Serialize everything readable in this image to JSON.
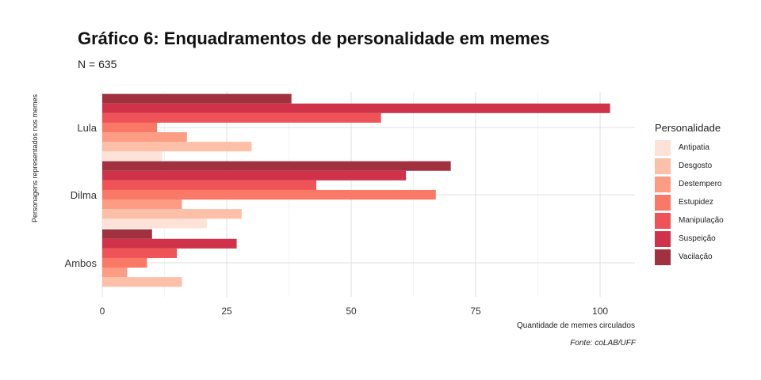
{
  "chart_data": {
    "type": "bar",
    "orientation": "horizontal",
    "title": "Gráfico 6: Enquadramentos de personalidade em memes",
    "subtitle": "N = 635",
    "xlabel": "Quantidade de memes circulados",
    "ylabel": "Personagens representados nos memes",
    "caption": "Fonte: coLAB/UFF",
    "legend_title": "Personalidade",
    "legend_position": "right",
    "grid": true,
    "xlim": [
      0,
      107
    ],
    "x_ticks": [
      0,
      25,
      50,
      75,
      100
    ],
    "x_tick_labels": [
      "0",
      "25",
      "50",
      "75",
      "100"
    ],
    "categories": [
      "Lula",
      "Dilma",
      "Ambos"
    ],
    "series": [
      {
        "name": "Antipatia",
        "color": "#fde2d8",
        "values": [
          12,
          21,
          0
        ]
      },
      {
        "name": "Desgosto",
        "color": "#fcbfa8",
        "values": [
          30,
          28,
          16
        ]
      },
      {
        "name": "Destempero",
        "color": "#fc9c82",
        "values": [
          17,
          16,
          5
        ]
      },
      {
        "name": "Estupidez",
        "color": "#fa7966",
        "values": [
          11,
          67,
          9
        ]
      },
      {
        "name": "Manipulação",
        "color": "#ef5357",
        "values": [
          56,
          43,
          15
        ]
      },
      {
        "name": "Suspeição",
        "color": "#d03349",
        "values": [
          102,
          61,
          27
        ]
      },
      {
        "name": "Vacilação",
        "color": "#a2313f",
        "values": [
          38,
          70,
          10
        ]
      }
    ]
  }
}
